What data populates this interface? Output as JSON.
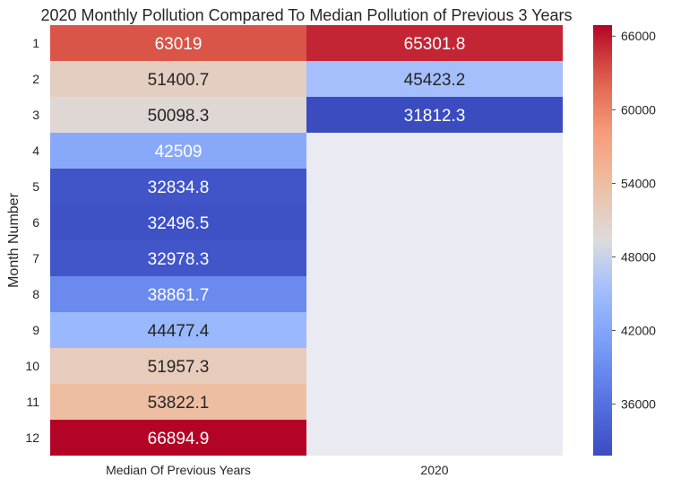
{
  "chart_data": {
    "type": "heatmap",
    "title": "2020 Monthly Pollution Compared To Median Pollution of Previous 3 Years",
    "xlabel": "",
    "ylabel": "Month Number",
    "columns": [
      "Median Of Previous Years",
      "2020"
    ],
    "rows": [
      "1",
      "2",
      "3",
      "4",
      "5",
      "6",
      "7",
      "8",
      "9",
      "10",
      "11",
      "12"
    ],
    "values": [
      [
        63019,
        65301.8
      ],
      [
        51400.7,
        45423.2
      ],
      [
        50098.3,
        31812.3
      ],
      [
        42509,
        null
      ],
      [
        32834.8,
        null
      ],
      [
        32496.5,
        null
      ],
      [
        32978.3,
        null
      ],
      [
        38861.7,
        null
      ],
      [
        44477.4,
        null
      ],
      [
        51957.3,
        null
      ],
      [
        53822.1,
        null
      ],
      [
        66894.9,
        null
      ]
    ],
    "value_labels": [
      [
        "63019",
        "65301.8"
      ],
      [
        "51400.7",
        "45423.2"
      ],
      [
        "50098.3",
        "31812.3"
      ],
      [
        "42509",
        ""
      ],
      [
        "32834.8",
        ""
      ],
      [
        "32496.5",
        ""
      ],
      [
        "32978.3",
        ""
      ],
      [
        "38861.7",
        ""
      ],
      [
        "44477.4",
        ""
      ],
      [
        "51957.3",
        ""
      ],
      [
        "53822.1",
        ""
      ],
      [
        "66894.9",
        ""
      ]
    ],
    "colormap": "coolwarm",
    "vmin": 31812.3,
    "vmax": 66894.9,
    "missing_color": "#eaeaf2",
    "colorbar_ticks": [
      36000,
      42000,
      48000,
      54000,
      60000,
      66000
    ],
    "colorbar_tick_labels": [
      "36000",
      "42000",
      "48000",
      "54000",
      "60000",
      "66000"
    ],
    "grid": false
  }
}
